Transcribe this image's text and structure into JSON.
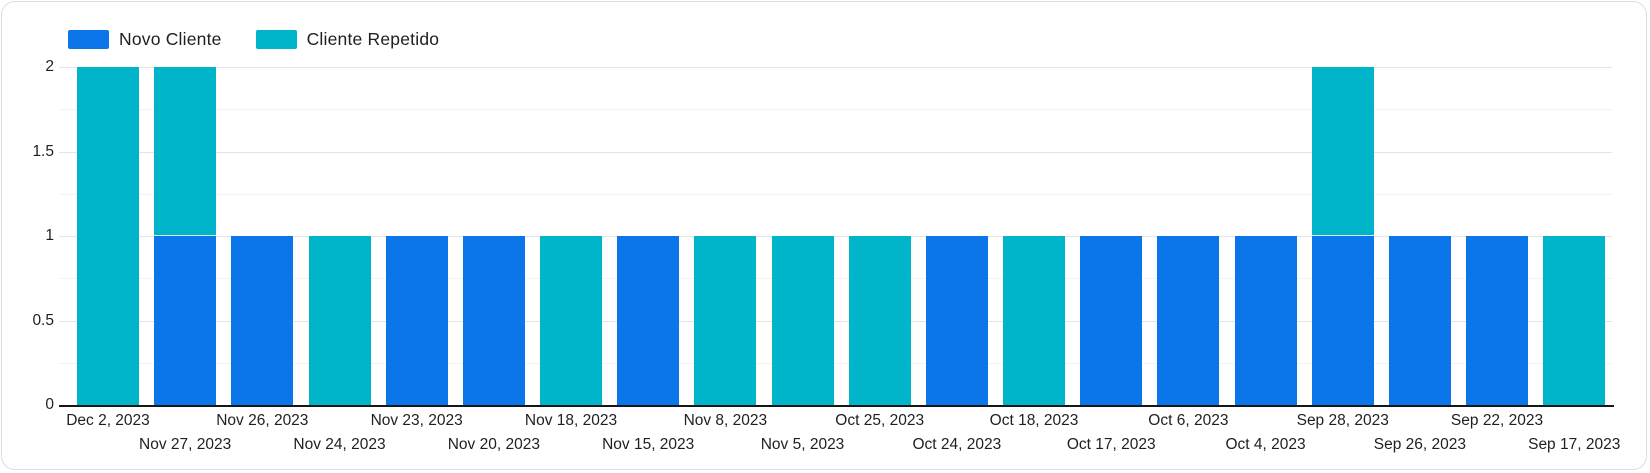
{
  "legend": [
    {
      "label": "Novo Cliente",
      "color": "#0b76ea"
    },
    {
      "label": "Cliente Repetido",
      "color": "#00b5c9"
    }
  ],
  "colors": {
    "novo_cliente": "#0b76ea",
    "cliente_repetido": "#00b5c9",
    "axis_line": "#161616",
    "grid_major": "#e4e4e4",
    "grid_minor": "#f3f3f3",
    "text": "#1f1f1f"
  },
  "y_axis": {
    "tick_labels": [
      "0",
      "0.5",
      "1",
      "1.5",
      "2"
    ]
  },
  "chart_data": {
    "type": "bar",
    "stacked": true,
    "title": "",
    "xlabel": "",
    "ylabel": "",
    "ylim": [
      0,
      2
    ],
    "y_ticks": [
      0,
      0.5,
      1,
      1.5,
      2
    ],
    "y_minor_ticks": [
      0.25,
      0.75,
      1.25,
      1.75
    ],
    "grid": true,
    "legend_position": "top-left",
    "categories": [
      "Dec 2, 2023",
      "Nov 27, 2023",
      "Nov 26, 2023",
      "Nov 24, 2023",
      "Nov 23, 2023",
      "Nov 20, 2023",
      "Nov 18, 2023",
      "Nov 15, 2023",
      "Nov 8, 2023",
      "Nov 5, 2023",
      "Oct 25, 2023",
      "Oct 24, 2023",
      "Oct 18, 2023",
      "Oct 17, 2023",
      "Oct 6, 2023",
      "Oct 4, 2023",
      "Sep 28, 2023",
      "Sep 26, 2023",
      "Sep 22, 2023",
      "Sep 17, 2023"
    ],
    "series": [
      {
        "name": "Novo Cliente",
        "color": "#0b76ea",
        "values": [
          0,
          1,
          1,
          0,
          1,
          1,
          0,
          1,
          0,
          0,
          0,
          1,
          0,
          1,
          1,
          1,
          1,
          1,
          1,
          0
        ]
      },
      {
        "name": "Cliente Repetido",
        "color": "#00b5c9",
        "values": [
          2,
          1,
          0,
          1,
          0,
          0,
          1,
          0,
          1,
          1,
          1,
          0,
          1,
          0,
          0,
          0,
          1,
          0,
          0,
          1
        ]
      }
    ]
  }
}
